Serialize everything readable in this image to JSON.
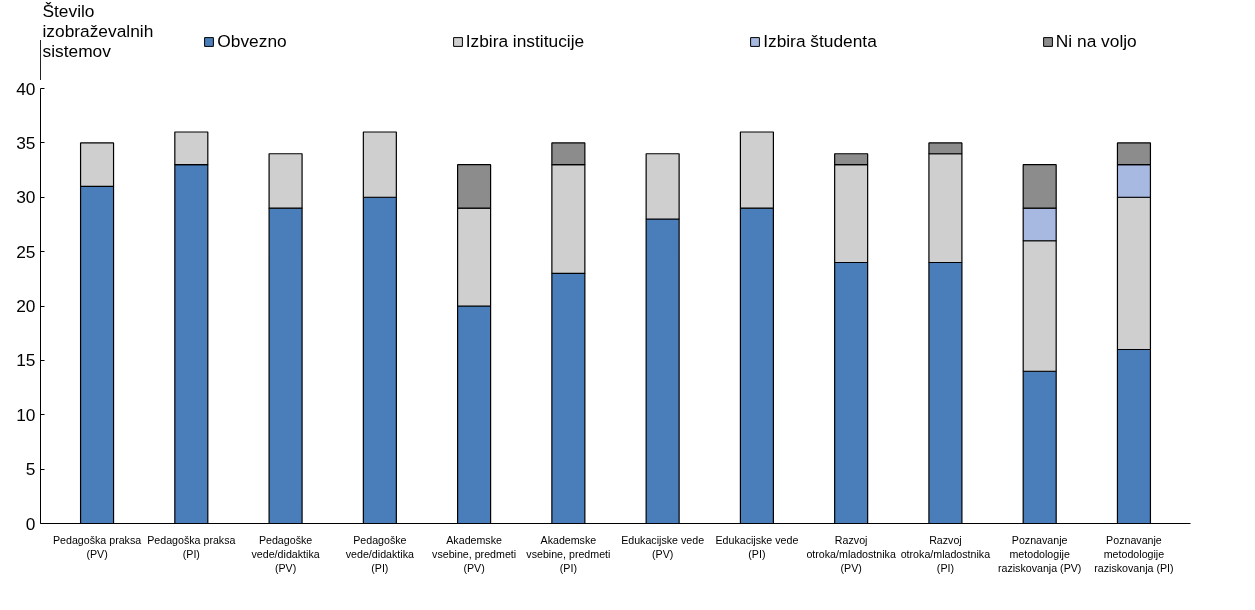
{
  "chart_data": {
    "type": "bar",
    "stacked": true,
    "ylabel": "Število izobraževalnih sistemov",
    "categories": [
      "Pedagoška praksa (PV)",
      "Pedagoška praksa (PI)",
      "Pedagoške vede/didaktika (PV)",
      "Pedagoške vede/didaktika (PI)",
      "Akademske vsebine, predmeti (PV)",
      "Akademske vsebine, predmeti (PI)",
      "Edukacijske vede (PV)",
      "Edukacijske vede (PI)",
      "Razvoj otroka/mladostnika (PV)",
      "Razvoj otroka/mladostnika (PI)",
      "Poznavanje metodologije raziskovanja (PV)",
      "Poznavanje metodologije raziskovanja (PI)"
    ],
    "series": [
      {
        "name": "Obvezno",
        "color": "#4a7ebb",
        "values": [
          31,
          33,
          29,
          30,
          20,
          23,
          28,
          29,
          24,
          24,
          14,
          16
        ]
      },
      {
        "name": "Izbira institucije",
        "color": "#cfcfcf",
        "values": [
          4,
          3,
          5,
          6,
          9,
          10,
          6,
          7,
          9,
          10,
          12,
          14
        ]
      },
      {
        "name": "Izbira študenta",
        "color": "#a7b9e1",
        "values": [
          0,
          0,
          0,
          0,
          0,
          0,
          0,
          0,
          0,
          0,
          3,
          3
        ]
      },
      {
        "name": "Ni na voljo",
        "color": "#8c8c8c",
        "values": [
          0,
          0,
          0,
          0,
          4,
          2,
          0,
          0,
          1,
          1,
          4,
          2
        ]
      }
    ],
    "ylim": [
      0,
      40
    ],
    "yticks": [
      0,
      5,
      10,
      15,
      20,
      25,
      30,
      35,
      40
    ],
    "grid": false,
    "legend": "top"
  }
}
